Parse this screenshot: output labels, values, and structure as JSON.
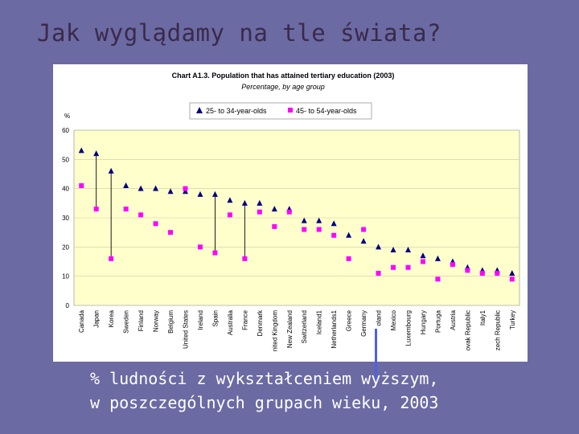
{
  "slide": {
    "title": "Jak wyglądamy na tle świata?",
    "caption_line1": "% ludności z wykształceniem wyższym,",
    "caption_line2": "w poszczególnych grupach wieku, 2003"
  },
  "colors": {
    "background": "#6b6aa3",
    "plot_area": "#ffffcc",
    "series_25_34": "#000080",
    "series_45_54": "#ff00ff",
    "drop_line": "#000000",
    "highlight_bar": "#4f61e0"
  },
  "chart_data": {
    "type": "scatter",
    "title": "Chart A1.3. Population that has attained tertiary education (2003)",
    "subtitle": "Percentage, by age group",
    "ylabel": "%",
    "ylim": [
      0,
      60
    ],
    "yticks": [
      0,
      10,
      20,
      30,
      40,
      50,
      60
    ],
    "grid": true,
    "legend_position": "top-center",
    "categories": [
      "Canada",
      "Japan",
      "Korea",
      "Sweden",
      "Finland",
      "Norway",
      "Belgium",
      "United States",
      "Ireland",
      "Spain",
      "Australia",
      "France",
      "Denmark",
      "nited Kingdom",
      "New Zealand",
      "Switzerland",
      "Iceland1",
      "Netherlands1",
      "Greece",
      "Germany",
      "oland",
      "Mexico",
      "Luxembourg",
      "Hungary",
      "Portuga",
      "Austria",
      "ovak Republic",
      "Italy1",
      "zech Republic",
      "Turkey"
    ],
    "series": [
      {
        "name": "25- to 34-year-olds",
        "marker": "triangle",
        "values": [
          53,
          52,
          46,
          41,
          40,
          40,
          39,
          39,
          38,
          38,
          36,
          35,
          35,
          33,
          33,
          29,
          29,
          28,
          24,
          22,
          20,
          19,
          19,
          17,
          16,
          15,
          13,
          12,
          12,
          11
        ]
      },
      {
        "name": "45- to 54-year-olds",
        "marker": "square",
        "values": [
          41,
          33,
          16,
          33,
          31,
          28,
          25,
          40,
          20,
          18,
          31,
          16,
          32,
          27,
          32,
          26,
          26,
          24,
          16,
          26,
          11,
          13,
          13,
          15,
          9,
          14,
          12,
          11,
          11,
          9
        ]
      }
    ],
    "drop_lines": [
      {
        "from": "Japan",
        "to_series": "45- to 54-year-olds"
      },
      {
        "from": "Korea",
        "to_series": "45- to 54-year-olds"
      },
      {
        "from": "Spain",
        "to_series": "45- to 54-year-olds"
      },
      {
        "from": "France",
        "to_series": "45- to 54-year-olds"
      }
    ]
  }
}
